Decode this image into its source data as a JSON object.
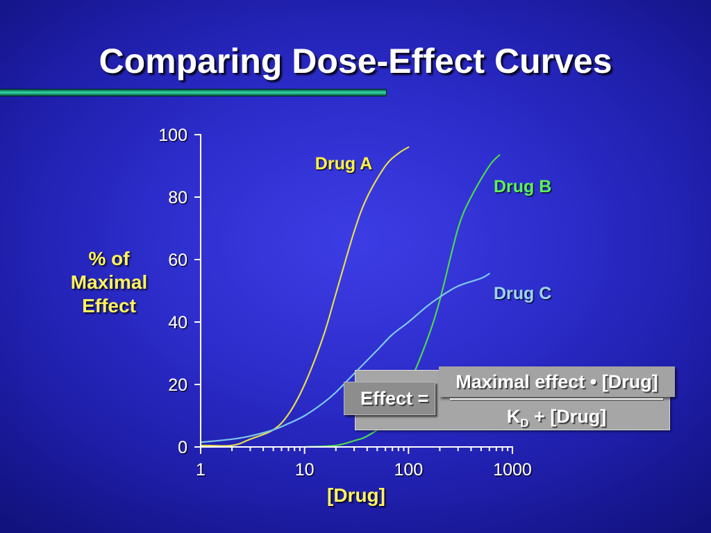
{
  "theme": {
    "background_color": "#2a2ac6",
    "title_color": "#ffffff",
    "axis_text_color": "#ffffff",
    "axis_label_color": "#fff45c",
    "accent_bar_color": "#22b487",
    "formula_box_color": "#a6a6a6"
  },
  "chart_data": {
    "type": "line",
    "title": "Comparing Dose-Effect Curves",
    "xlabel": "[Drug]",
    "ylabel": [
      "% of",
      "Maximal",
      "Effect"
    ],
    "x_scale": "log",
    "xlim": [
      1,
      1000
    ],
    "ylim": [
      0,
      100
    ],
    "x_ticks": [
      1,
      10,
      100,
      1000
    ],
    "y_ticks": [
      0,
      20,
      40,
      60,
      80,
      100
    ],
    "x_minor_ticks": true,
    "grid": false,
    "series": [
      {
        "name": "Drug A",
        "color": "#e8dc50",
        "label_color": "#fff24a",
        "x": [
          1,
          2,
          3,
          5,
          7,
          10,
          15,
          20,
          30,
          40,
          60,
          80,
          100
        ],
        "y": [
          0.5,
          0.5,
          2.5,
          5.5,
          10.5,
          20,
          35,
          49,
          69,
          80,
          90,
          94,
          96
        ]
      },
      {
        "name": "Drug B",
        "color": "#4ed84e",
        "label_color": "#5cf05c",
        "x": [
          10,
          20,
          30,
          40,
          60,
          100,
          150,
          200,
          300,
          400,
          600,
          750
        ],
        "y": [
          0,
          0.5,
          2,
          3.5,
          8,
          20,
          34,
          47,
          70,
          80,
          90,
          93.5
        ]
      },
      {
        "name": "Drug C",
        "color": "#7ec8e8",
        "label_color": "#9dd3f5",
        "x": [
          1,
          2,
          3,
          5,
          7,
          10,
          15,
          20,
          30,
          50,
          70,
          100,
          150,
          200,
          300,
          500,
          600
        ],
        "y": [
          1.5,
          2.5,
          3.5,
          5.5,
          7.5,
          10,
          14,
          17.5,
          23.5,
          31,
          36,
          40,
          45,
          48,
          51.5,
          54,
          55.5
        ]
      }
    ]
  },
  "formula": {
    "lhs": "Effect =",
    "numerator": "Maximal effect • [Drug]",
    "denominator_k": "K",
    "denominator_sub": "D",
    "denominator_rest": "+ [Drug]"
  }
}
